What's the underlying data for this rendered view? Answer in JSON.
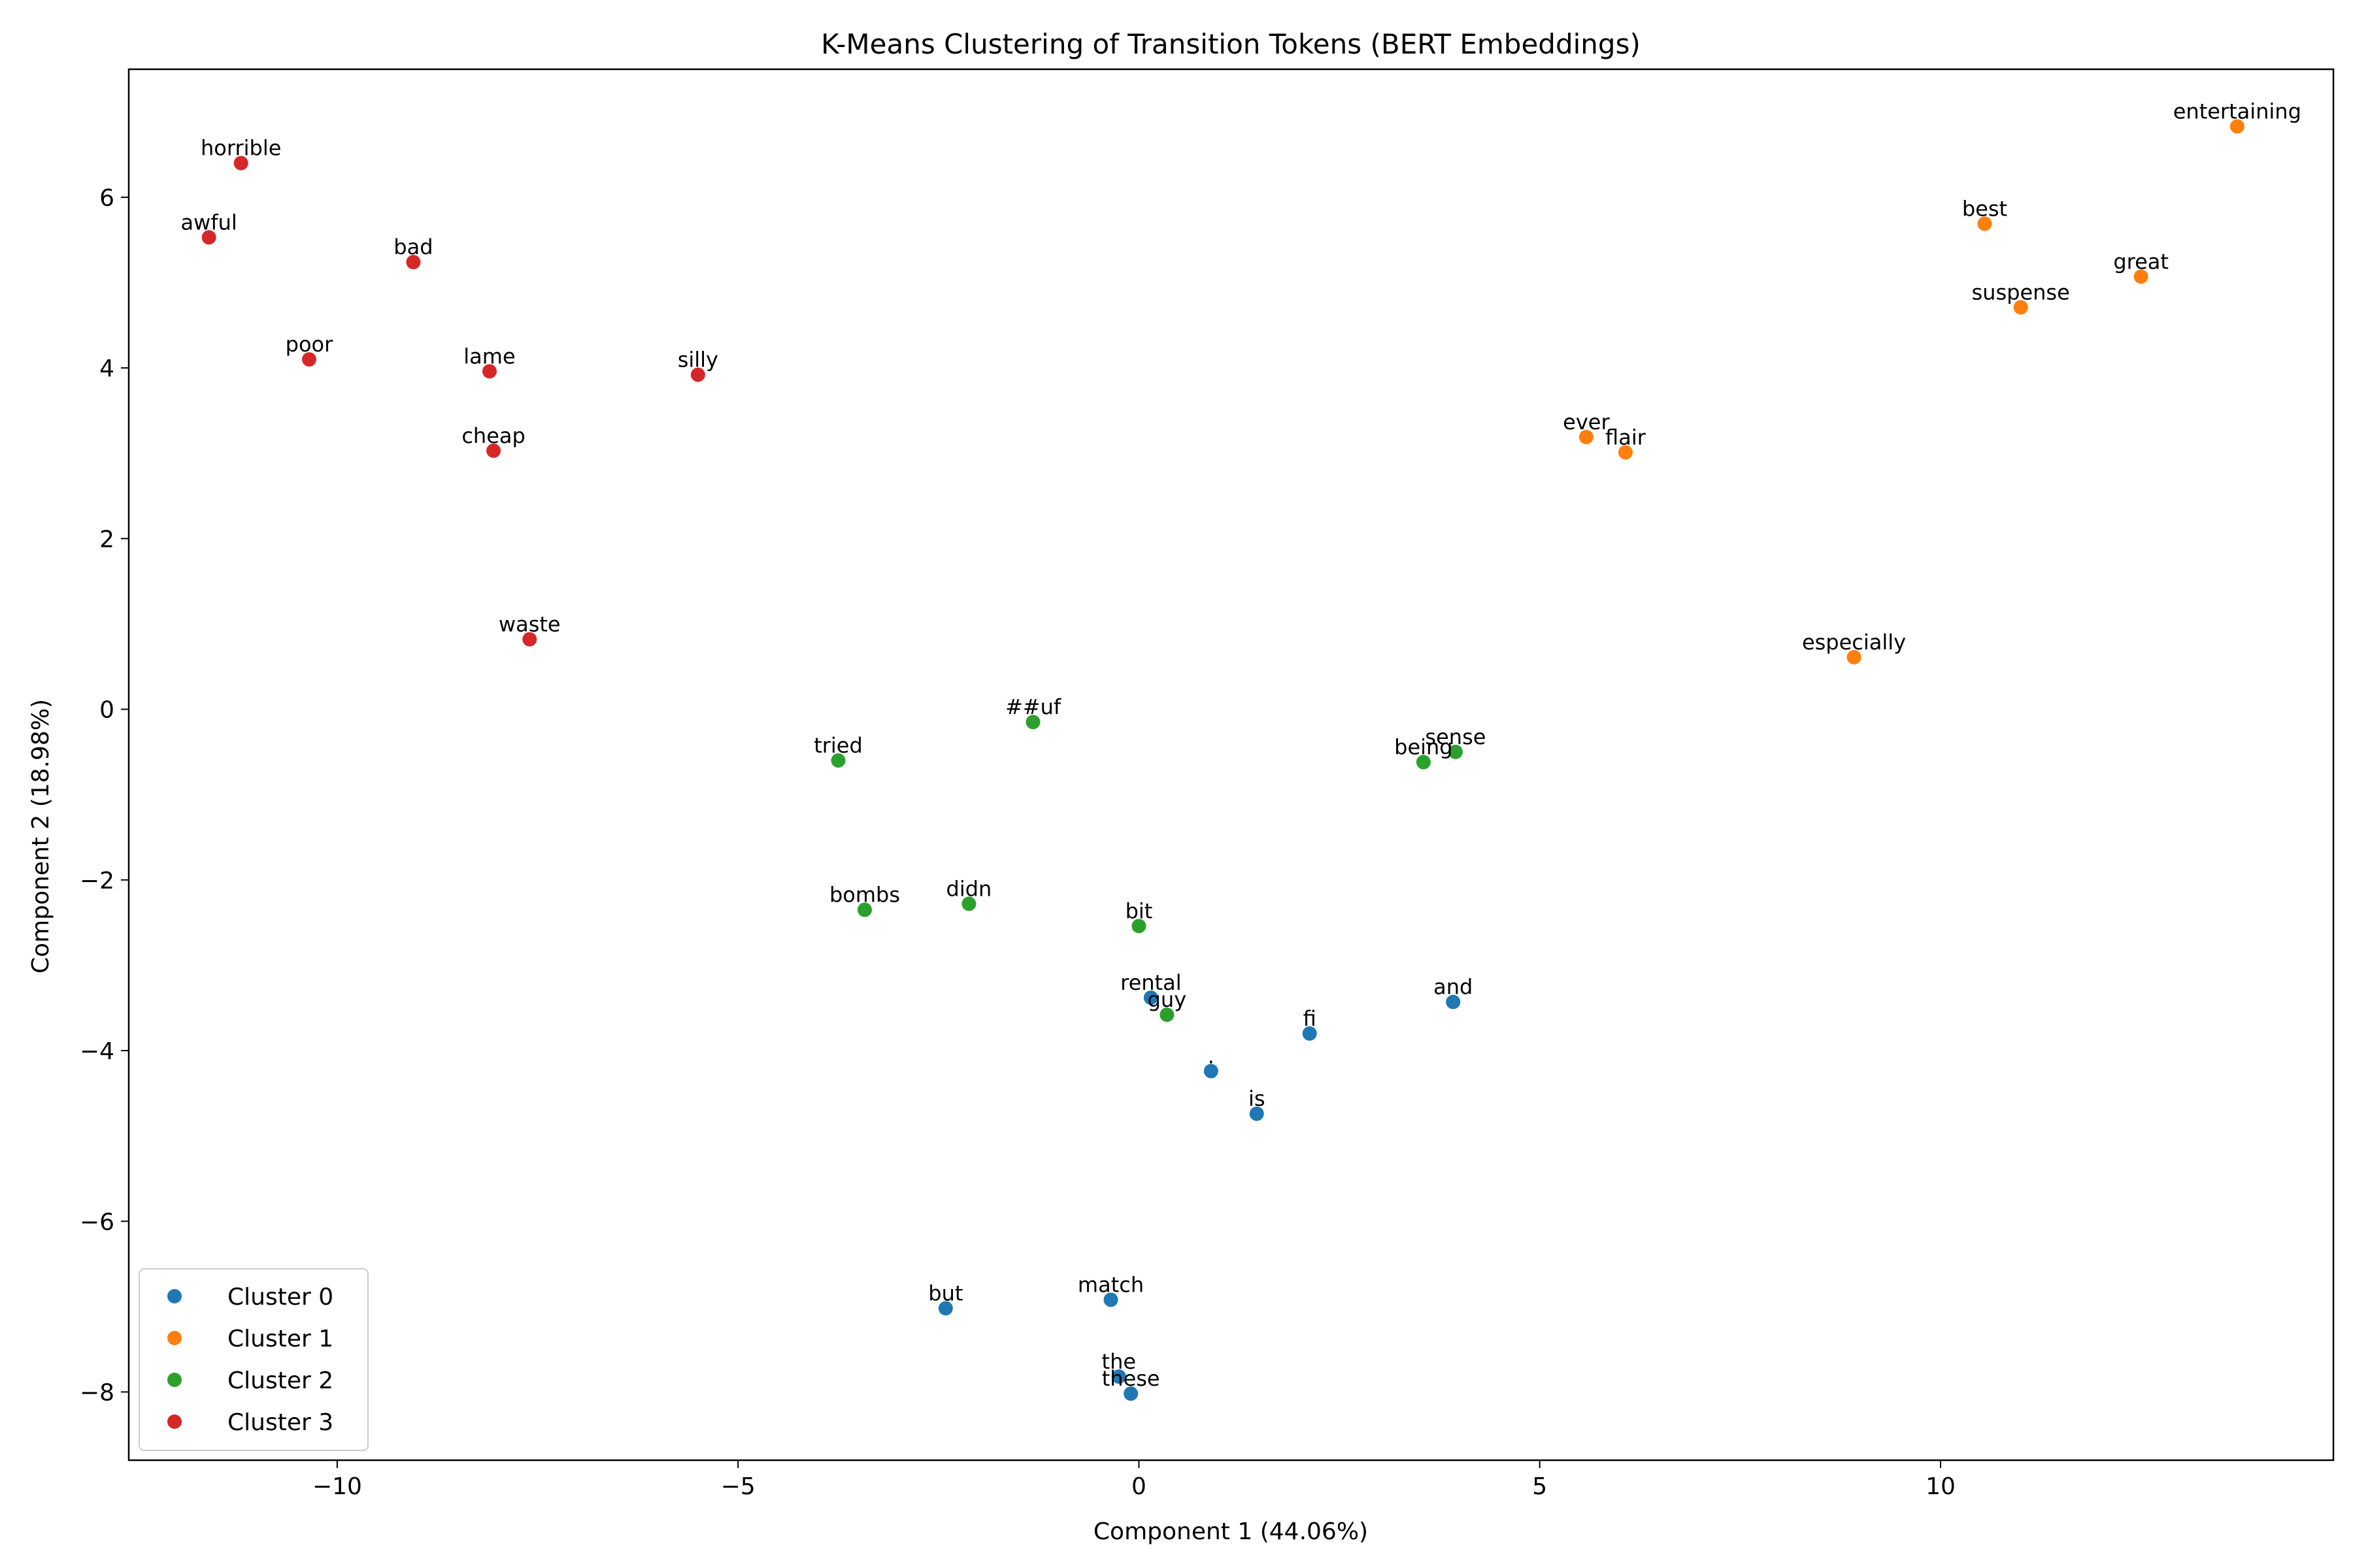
{
  "chart_data": {
    "type": "scatter",
    "title": "K-Means Clustering of Transition Tokens (BERT Embeddings)",
    "xlabel": "Component 1 (44.06%)",
    "ylabel": "Component 2 (18.98%)",
    "xlim": [
      -12.6,
      14.9
    ],
    "ylim": [
      -8.8,
      7.5
    ],
    "xticks": [
      -10,
      -5,
      0,
      5,
      10
    ],
    "yticks": [
      -8,
      -6,
      -4,
      -2,
      0,
      2,
      4,
      6
    ],
    "xtick_labels": [
      "−10",
      "−5",
      "0",
      "5",
      "10"
    ],
    "ytick_labels": [
      "−8",
      "−6",
      "−4",
      "−2",
      "0",
      "2",
      "4",
      "6"
    ],
    "grid": false,
    "legend_position": "lower-left",
    "series": [
      {
        "name": "Cluster 0",
        "color": "#1f77b4",
        "points": [
          {
            "label": "rental",
            "x": 0.15,
            "y": -3.38
          },
          {
            "label": "fi",
            "x": 2.13,
            "y": -3.8
          },
          {
            "label": "and",
            "x": 3.92,
            "y": -3.43
          },
          {
            "label": ".",
            "x": 0.9,
            "y": -4.24
          },
          {
            "label": "is",
            "x": 1.47,
            "y": -4.74
          },
          {
            "label": "but",
            "x": -2.41,
            "y": -7.02
          },
          {
            "label": "match",
            "x": -0.35,
            "y": -6.92
          },
          {
            "label": "the",
            "x": -0.25,
            "y": -7.82
          },
          {
            "label": "these",
            "x": -0.1,
            "y": -8.02
          }
        ]
      },
      {
        "name": "Cluster 1",
        "color": "#ff7f0e",
        "points": [
          {
            "label": "entertaining",
            "x": 13.7,
            "y": 6.83
          },
          {
            "label": "best",
            "x": 10.55,
            "y": 5.69
          },
          {
            "label": "great",
            "x": 12.5,
            "y": 5.07
          },
          {
            "label": "suspense",
            "x": 11.0,
            "y": 4.71
          },
          {
            "label": "ever",
            "x": 5.58,
            "y": 3.19
          },
          {
            "label": "flair",
            "x": 6.07,
            "y": 3.01
          },
          {
            "label": "especially",
            "x": 8.92,
            "y": 0.61
          }
        ]
      },
      {
        "name": "Cluster 2",
        "color": "#2ca02c",
        "points": [
          {
            "label": "##uf",
            "x": -1.32,
            "y": -0.15
          },
          {
            "label": "tried",
            "x": -3.75,
            "y": -0.6
          },
          {
            "label": "sense",
            "x": 3.95,
            "y": -0.5
          },
          {
            "label": "being",
            "x": 3.55,
            "y": -0.62
          },
          {
            "label": "bombs",
            "x": -3.42,
            "y": -2.35
          },
          {
            "label": "didn",
            "x": -2.12,
            "y": -2.28
          },
          {
            "label": "bit",
            "x": 0.0,
            "y": -2.54
          },
          {
            "label": "guy",
            "x": 0.35,
            "y": -3.58
          }
        ]
      },
      {
        "name": "Cluster 3",
        "color": "#d62728",
        "points": [
          {
            "label": "horrible",
            "x": -11.2,
            "y": 6.4
          },
          {
            "label": "awful",
            "x": -11.6,
            "y": 5.53
          },
          {
            "label": "bad",
            "x": -9.05,
            "y": 5.24
          },
          {
            "label": "poor",
            "x": -10.35,
            "y": 4.1
          },
          {
            "label": "lame",
            "x": -8.1,
            "y": 3.96
          },
          {
            "label": "silly",
            "x": -5.5,
            "y": 3.92
          },
          {
            "label": "cheap",
            "x": -8.05,
            "y": 3.03
          },
          {
            "label": "waste",
            "x": -7.6,
            "y": 0.82
          }
        ]
      }
    ]
  }
}
